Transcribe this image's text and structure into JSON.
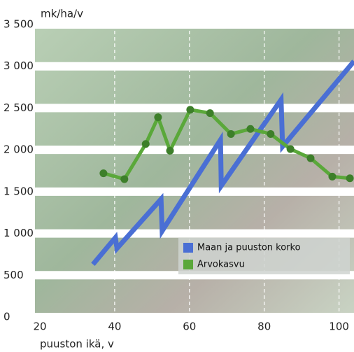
{
  "chart_data": {
    "type": "line",
    "y_unit": "mk/ha/v",
    "x_label": "puuston ikä, v",
    "xlim": [
      20,
      104
    ],
    "xticks": [
      20,
      40,
      60,
      80,
      100
    ],
    "ylim": [
      0,
      3500
    ],
    "yticks": [
      0,
      500,
      {
        "value": 1000,
        "label": "1 000"
      },
      {
        "value": 1500,
        "label": "1 500"
      },
      {
        "value": 2000,
        "label": "2 000"
      },
      {
        "value": 2500,
        "label": "2 500"
      },
      {
        "value": 3000,
        "label": "3 000"
      },
      {
        "value": 3500,
        "label": "3 500"
      }
    ],
    "grid": true,
    "series": [
      {
        "name": "Maan ja puuston korko",
        "color": "#4a6fd4",
        "x": [
          34.2,
          40.2,
          40.6,
          52.4,
          52.7,
          68.3,
          68.5,
          84.5,
          84.9,
          104
        ],
        "values": [
          630,
          950,
          820,
          1410,
          1030,
          2120,
          1570,
          2600,
          2040,
          3060
        ]
      },
      {
        "name": "Arvokasvu",
        "color": "#5aa83a",
        "x": [
          37.0,
          42.6,
          48.3,
          51.6,
          54.8,
          60.2,
          65.5,
          71.1,
          76.3,
          81.7,
          87.0,
          92.4,
          98.2,
          102.9
        ],
        "values": [
          1720,
          1650,
          2070,
          2390,
          1990,
          2480,
          2440,
          2190,
          2250,
          2190,
          2010,
          1900,
          1680,
          1660
        ]
      }
    ]
  }
}
